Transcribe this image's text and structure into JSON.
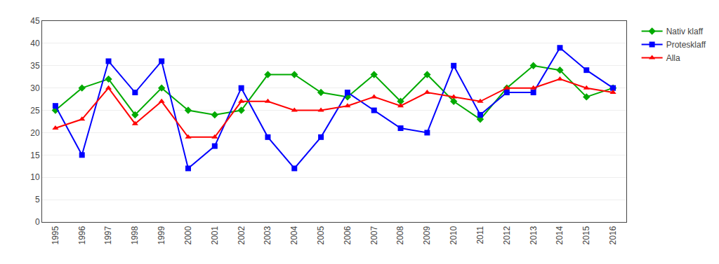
{
  "chart_data": {
    "type": "line",
    "x": [
      1995,
      1996,
      1997,
      1998,
      1999,
      2000,
      2001,
      2002,
      2003,
      2004,
      2005,
      2006,
      2007,
      2008,
      2009,
      2010,
      2011,
      2012,
      2013,
      2014,
      2015,
      2016
    ],
    "series": [
      {
        "name": "Nativ klaff",
        "color": "#00aa00",
        "marker": "diamond",
        "values": [
          25,
          30,
          32,
          24,
          30,
          25,
          24,
          25,
          33,
          33,
          29,
          28,
          33,
          27,
          33,
          27,
          23,
          30,
          35,
          34,
          28,
          30
        ]
      },
      {
        "name": "Protesklaff",
        "color": "#0000ff",
        "marker": "square",
        "values": [
          26,
          15,
          36,
          29,
          36,
          12,
          17,
          30,
          19,
          12,
          19,
          29,
          25,
          21,
          20,
          35,
          24,
          29,
          29,
          39,
          34,
          30
        ]
      },
      {
        "name": "Alla",
        "color": "#ff0000",
        "marker": "triangle-up",
        "values": [
          21,
          23,
          30,
          22,
          27,
          19,
          19,
          27,
          27,
          25,
          25,
          26,
          28,
          26,
          29,
          28,
          27,
          30,
          30,
          32,
          30,
          29
        ]
      }
    ],
    "xlim": [
      1994.5,
      2016.5
    ],
    "xticks": [
      1995,
      1996,
      1997,
      1998,
      1999,
      2000,
      2001,
      2002,
      2003,
      2004,
      2005,
      2006,
      2007,
      2008,
      2009,
      2010,
      2011,
      2012,
      2013,
      2014,
      2015,
      2016
    ],
    "ylim": [
      0,
      45
    ],
    "yticks": [
      0,
      5,
      10,
      15,
      20,
      25,
      30,
      35,
      40,
      45
    ],
    "grid": true,
    "legend": "right"
  }
}
